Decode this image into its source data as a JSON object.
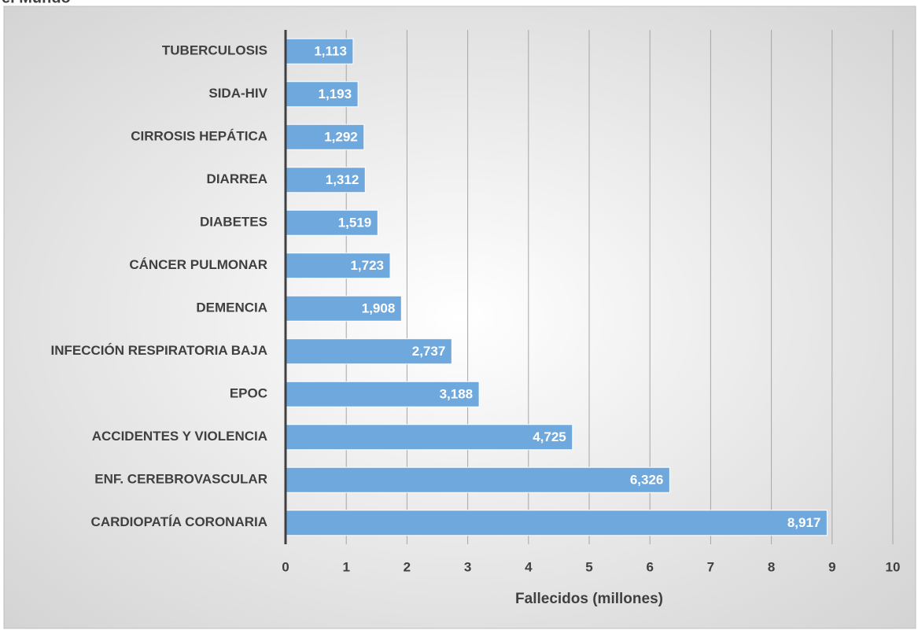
{
  "chart_data": {
    "type": "bar",
    "orientation": "horizontal",
    "title": "el Mundo",
    "categories": [
      "TUBERCULOSIS",
      "SIDA-HIV",
      "CIRROSIS HEPÁTICA",
      "DIARREA",
      "DIABETES",
      "CÁNCER PULMONAR",
      "DEMENCIA",
      "INFECCIÓN RESPIRATORIA BAJA",
      "EPOC",
      "ACCIDENTES Y VIOLENCIA",
      "ENF. CEREBROVASCULAR",
      "CARDIOPATÍA CORONARIA"
    ],
    "values": [
      1.113,
      1.193,
      1.292,
      1.312,
      1.519,
      1.723,
      1.908,
      2.737,
      3.188,
      4.725,
      6.326,
      8.917
    ],
    "value_labels": [
      "1,113",
      "1,193",
      "1,292",
      "1,312",
      "1,519",
      "1,723",
      "1,908",
      "2,737",
      "3,188",
      "4,725",
      "6,326",
      "8,917"
    ],
    "color": "#6fa8dc",
    "xlabel": "Fallecidos (millones)",
    "xlim": [
      0,
      10
    ],
    "xticks": [
      0,
      1,
      2,
      3,
      4,
      5,
      6,
      7,
      8,
      9,
      10
    ],
    "grid": true
  }
}
